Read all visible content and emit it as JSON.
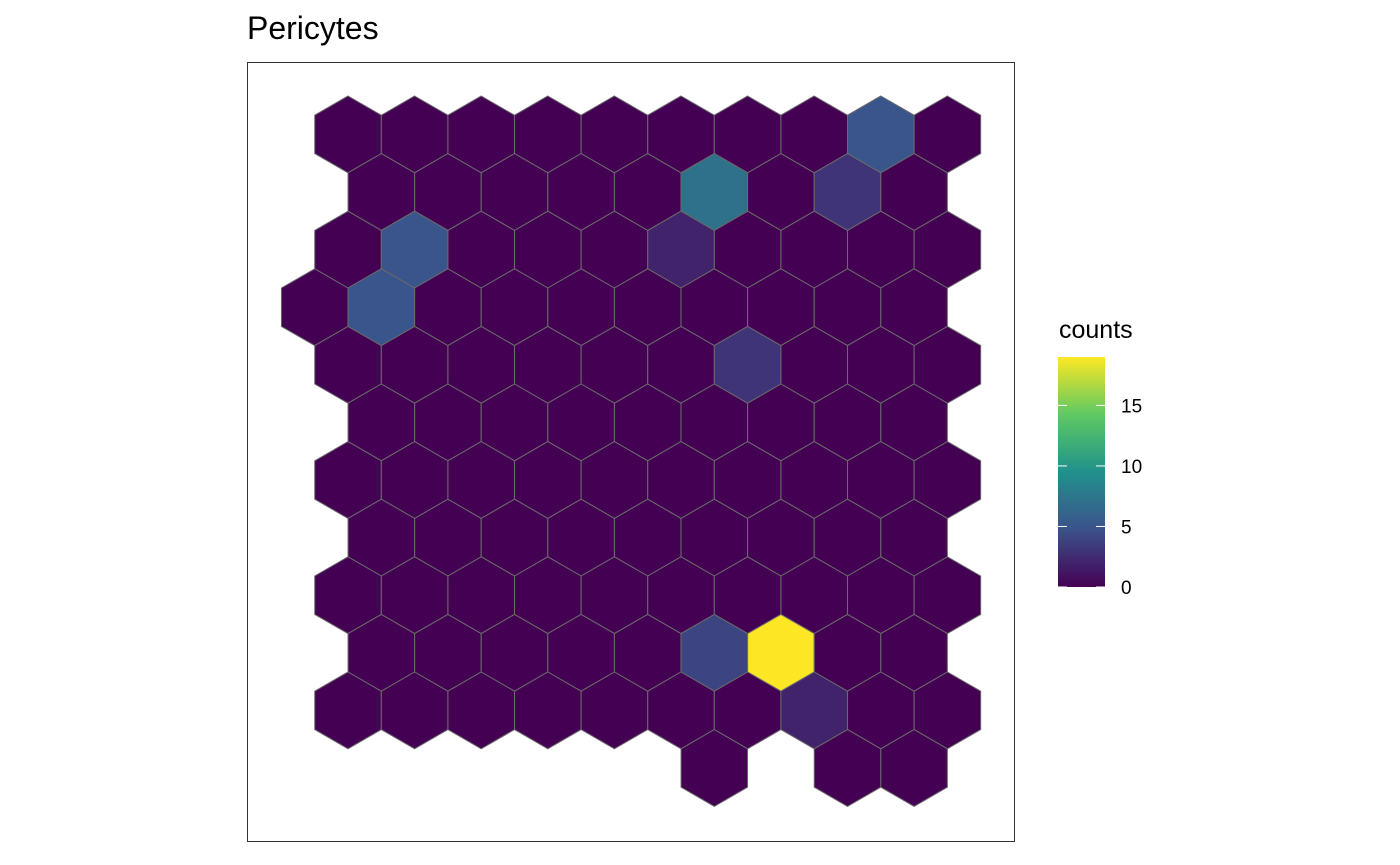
{
  "chart_data": {
    "type": "heatmap",
    "title": "Pericytes",
    "legend": {
      "title": "counts",
      "placement": "right",
      "ticks": [
        0,
        5,
        10,
        15
      ],
      "range": [
        0,
        19
      ]
    },
    "colors": {
      "viridis_stops": [
        "#440154",
        "#3b528b",
        "#21918c",
        "#5ec962",
        "#fde725"
      ],
      "hex_stroke": "#6a6a6a",
      "panel_border": "#333333"
    },
    "rows": [
      {
        "cols": [
          1,
          2,
          3,
          4,
          5,
          6,
          7,
          8,
          9,
          10
        ],
        "counts": [
          0,
          0,
          0,
          0,
          0,
          0,
          0,
          0,
          5,
          0
        ]
      },
      {
        "cols": [
          1,
          2,
          3,
          4,
          5,
          6,
          7,
          8,
          9
        ],
        "counts": [
          0,
          0,
          0,
          0,
          0,
          7,
          0,
          3,
          0
        ]
      },
      {
        "cols": [
          1,
          2,
          3,
          4,
          5,
          6,
          7,
          8,
          9,
          10
        ],
        "counts": [
          0,
          5,
          0,
          0,
          0,
          2,
          0,
          0,
          0,
          0
        ]
      },
      {
        "cols": [
          0,
          1,
          2,
          3,
          4,
          5,
          6,
          7,
          8,
          9
        ],
        "counts": [
          0,
          5,
          0,
          0,
          0,
          0,
          0,
          0,
          0,
          0
        ]
      },
      {
        "cols": [
          1,
          2,
          3,
          4,
          5,
          6,
          7,
          8,
          9,
          10
        ],
        "counts": [
          0,
          0,
          0,
          0,
          0,
          0,
          3,
          0,
          0,
          0
        ]
      },
      {
        "cols": [
          1,
          2,
          3,
          4,
          5,
          6,
          7,
          8,
          9
        ],
        "counts": [
          0,
          0,
          0,
          0,
          0,
          0,
          0,
          0,
          0
        ]
      },
      {
        "cols": [
          1,
          2,
          3,
          4,
          5,
          6,
          7,
          8,
          9,
          10
        ],
        "counts": [
          0,
          0,
          0,
          0,
          0,
          0,
          0,
          0,
          0,
          0
        ]
      },
      {
        "cols": [
          1,
          2,
          3,
          4,
          5,
          6,
          7,
          8,
          9
        ],
        "counts": [
          0,
          0,
          0,
          0,
          0,
          0,
          0,
          0,
          0
        ]
      },
      {
        "cols": [
          1,
          2,
          3,
          4,
          5,
          6,
          7,
          8,
          9,
          10
        ],
        "counts": [
          0,
          0,
          0,
          0,
          0,
          0,
          0,
          0,
          0,
          0
        ]
      },
      {
        "cols": [
          1,
          2,
          3,
          4,
          5,
          6,
          7,
          8,
          9
        ],
        "counts": [
          0,
          0,
          0,
          0,
          0,
          4,
          19,
          0,
          0
        ]
      },
      {
        "cols": [
          1,
          2,
          3,
          4,
          5,
          6,
          7,
          8,
          9,
          10
        ],
        "counts": [
          0,
          0,
          0,
          0,
          0,
          0,
          0,
          2,
          0,
          0
        ]
      },
      {
        "cols": [
          6,
          8,
          9
        ],
        "counts": [
          0,
          0,
          0
        ]
      }
    ]
  }
}
